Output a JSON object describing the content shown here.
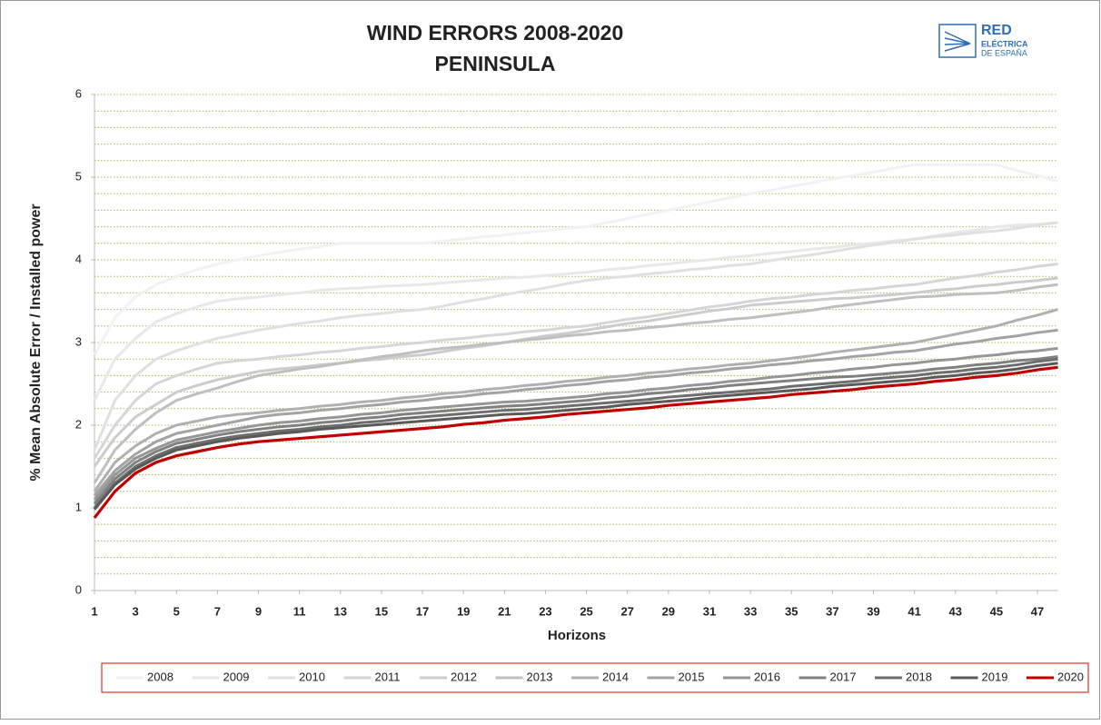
{
  "logo": [
    "RED",
    "ELÉCTRICA",
    "DE ESPAÑA"
  ],
  "chart_data": {
    "type": "line",
    "title": "WIND ERRORS 2008-2020",
    "subtitle": "PENINSULA",
    "x_label": "Horizons",
    "y_label": "% Mean Absolute Error / Installed power",
    "x": [
      1,
      2,
      3,
      4,
      5,
      6,
      7,
      8,
      9,
      10,
      11,
      12,
      13,
      14,
      15,
      16,
      17,
      18,
      19,
      20,
      21,
      22,
      23,
      24,
      25,
      26,
      27,
      28,
      29,
      30,
      31,
      32,
      33,
      34,
      35,
      36,
      37,
      38,
      39,
      40,
      41,
      42,
      43,
      44,
      45,
      46,
      47,
      48
    ],
    "xlim": [
      1,
      48
    ],
    "xticks": [
      1,
      3,
      5,
      7,
      9,
      11,
      13,
      15,
      17,
      19,
      21,
      23,
      25,
      27,
      29,
      31,
      33,
      35,
      37,
      39,
      41,
      43,
      45,
      47
    ],
    "ylim": [
      0,
      6
    ],
    "yticks": [
      0,
      1,
      2,
      3,
      4,
      5,
      6
    ],
    "ygrid": [
      0.2,
      0.4,
      0.6,
      0.8,
      1,
      1.2,
      1.4,
      1.6,
      1.8,
      2,
      2.2,
      2.4,
      2.6,
      2.8,
      3,
      3.2,
      3.4,
      3.6,
      3.8,
      4,
      4.2,
      4.4,
      4.6,
      4.8,
      5,
      5.2,
      5.4,
      5.6,
      5.8,
      6
    ],
    "grid_color": "#9bbb59",
    "legend": "bottom",
    "series": [
      {
        "name": "2008",
        "color": "#f2f2f2",
        "values": [
          2.85,
          3.3,
          3.55,
          3.7,
          3.8,
          3.88,
          3.95,
          4.0,
          4.05,
          4.09,
          4.13,
          4.16,
          4.2,
          4.2,
          4.2,
          4.2,
          4.2,
          4.23,
          4.25,
          4.28,
          4.3,
          4.33,
          4.35,
          4.38,
          4.4,
          4.45,
          4.5,
          4.55,
          4.6,
          4.65,
          4.7,
          4.75,
          4.8,
          4.84,
          4.89,
          4.93,
          4.98,
          5.02,
          5.06,
          5.11,
          5.15,
          5.15,
          5.15,
          5.15,
          5.15,
          5.08,
          5.02,
          4.95
        ]
      },
      {
        "name": "2009",
        "color": "#e8e8e8",
        "values": [
          2.3,
          2.8,
          3.05,
          3.25,
          3.35,
          3.43,
          3.5,
          3.53,
          3.55,
          3.58,
          3.6,
          3.63,
          3.65,
          3.66,
          3.68,
          3.69,
          3.7,
          3.72,
          3.74,
          3.76,
          3.78,
          3.79,
          3.81,
          3.83,
          3.85,
          3.88,
          3.9,
          3.93,
          3.95,
          3.98,
          4.0,
          4.03,
          4.05,
          4.08,
          4.1,
          4.13,
          4.15,
          4.18,
          4.2,
          4.23,
          4.25,
          4.29,
          4.33,
          4.36,
          4.4,
          4.42,
          4.43,
          4.45
        ]
      },
      {
        "name": "2010",
        "color": "#e0e0e0",
        "values": [
          1.7,
          2.3,
          2.6,
          2.8,
          2.9,
          2.98,
          3.05,
          3.1,
          3.15,
          3.19,
          3.23,
          3.26,
          3.3,
          3.33,
          3.35,
          3.38,
          3.4,
          3.44,
          3.49,
          3.53,
          3.58,
          3.62,
          3.66,
          3.71,
          3.75,
          3.78,
          3.8,
          3.83,
          3.85,
          3.88,
          3.9,
          3.93,
          3.95,
          3.99,
          4.03,
          4.06,
          4.1,
          4.14,
          4.18,
          4.21,
          4.25,
          4.28,
          4.3,
          4.33,
          4.35,
          4.38,
          4.42,
          4.45
        ]
      },
      {
        "name": "2011",
        "color": "#d6d6d6",
        "values": [
          1.6,
          2.0,
          2.3,
          2.5,
          2.6,
          2.68,
          2.75,
          2.78,
          2.8,
          2.83,
          2.85,
          2.88,
          2.9,
          2.93,
          2.95,
          2.98,
          3.0,
          3.03,
          3.05,
          3.08,
          3.1,
          3.13,
          3.15,
          3.18,
          3.2,
          3.24,
          3.28,
          3.31,
          3.35,
          3.39,
          3.43,
          3.46,
          3.5,
          3.53,
          3.55,
          3.58,
          3.6,
          3.63,
          3.65,
          3.68,
          3.7,
          3.74,
          3.78,
          3.81,
          3.85,
          3.88,
          3.92,
          3.95
        ]
      },
      {
        "name": "2012",
        "color": "#cccccc",
        "values": [
          1.5,
          1.85,
          2.1,
          2.25,
          2.4,
          2.48,
          2.55,
          2.6,
          2.65,
          2.68,
          2.7,
          2.73,
          2.75,
          2.78,
          2.8,
          2.83,
          2.85,
          2.89,
          2.93,
          2.96,
          3.0,
          3.04,
          3.08,
          3.11,
          3.15,
          3.19,
          3.23,
          3.26,
          3.3,
          3.34,
          3.38,
          3.41,
          3.45,
          3.47,
          3.49,
          3.51,
          3.53,
          3.54,
          3.56,
          3.58,
          3.6,
          3.63,
          3.65,
          3.68,
          3.7,
          3.73,
          3.75,
          3.78
        ]
      },
      {
        "name": "2013",
        "color": "#bfbfbf",
        "values": [
          1.3,
          1.7,
          1.95,
          2.15,
          2.3,
          2.38,
          2.45,
          2.53,
          2.6,
          2.64,
          2.68,
          2.71,
          2.75,
          2.79,
          2.83,
          2.86,
          2.9,
          2.93,
          2.95,
          2.98,
          3.0,
          3.03,
          3.05,
          3.08,
          3.1,
          3.13,
          3.15,
          3.18,
          3.2,
          3.23,
          3.25,
          3.28,
          3.3,
          3.33,
          3.36,
          3.39,
          3.43,
          3.46,
          3.49,
          3.52,
          3.55,
          3.56,
          3.58,
          3.59,
          3.6,
          3.63,
          3.67,
          3.7
        ]
      },
      {
        "name": "2014",
        "color": "#b0b0b0",
        "values": [
          1.2,
          1.55,
          1.75,
          1.9,
          2.0,
          2.05,
          2.1,
          2.13,
          2.15,
          2.18,
          2.2,
          2.23,
          2.25,
          2.28,
          2.3,
          2.33,
          2.35,
          2.38,
          2.4,
          2.43,
          2.45,
          2.48,
          2.5,
          2.53,
          2.55,
          2.58,
          2.6,
          2.63,
          2.65,
          2.68,
          2.7,
          2.73,
          2.75,
          2.78,
          2.81,
          2.84,
          2.88,
          2.91,
          2.94,
          2.97,
          3.0,
          3.05,
          3.1,
          3.15,
          3.2,
          3.27,
          3.33,
          3.4
        ]
      },
      {
        "name": "2015",
        "color": "#a3a3a3",
        "values": [
          1.15,
          1.45,
          1.65,
          1.8,
          1.9,
          1.95,
          2.0,
          2.05,
          2.1,
          2.13,
          2.15,
          2.18,
          2.2,
          2.23,
          2.25,
          2.28,
          2.3,
          2.33,
          2.35,
          2.38,
          2.4,
          2.43,
          2.45,
          2.48,
          2.5,
          2.53,
          2.55,
          2.58,
          2.6,
          2.63,
          2.65,
          2.68,
          2.7,
          2.73,
          2.75,
          2.78,
          2.8,
          2.83,
          2.85,
          2.88,
          2.9,
          2.94,
          2.98,
          3.01,
          3.05,
          3.08,
          3.12,
          3.15
        ]
      },
      {
        "name": "2016",
        "color": "#969696",
        "values": [
          1.1,
          1.4,
          1.6,
          1.72,
          1.82,
          1.87,
          1.92,
          1.96,
          2.0,
          2.03,
          2.05,
          2.08,
          2.1,
          2.13,
          2.15,
          2.18,
          2.2,
          2.22,
          2.24,
          2.26,
          2.28,
          2.29,
          2.31,
          2.33,
          2.35,
          2.38,
          2.4,
          2.43,
          2.45,
          2.48,
          2.5,
          2.53,
          2.55,
          2.58,
          2.6,
          2.63,
          2.65,
          2.68,
          2.7,
          2.73,
          2.75,
          2.78,
          2.8,
          2.83,
          2.85,
          2.88,
          2.9,
          2.93
        ]
      },
      {
        "name": "2017",
        "color": "#808080",
        "values": [
          1.05,
          1.35,
          1.55,
          1.68,
          1.78,
          1.83,
          1.88,
          1.92,
          1.95,
          1.98,
          2.0,
          2.03,
          2.05,
          2.08,
          2.1,
          2.13,
          2.15,
          2.17,
          2.19,
          2.21,
          2.23,
          2.24,
          2.26,
          2.28,
          2.3,
          2.33,
          2.35,
          2.38,
          2.4,
          2.43,
          2.45,
          2.48,
          2.5,
          2.52,
          2.54,
          2.56,
          2.58,
          2.59,
          2.61,
          2.63,
          2.65,
          2.68,
          2.7,
          2.73,
          2.75,
          2.78,
          2.8,
          2.83
        ]
      },
      {
        "name": "2018",
        "color": "#6e6e6e",
        "values": [
          1.0,
          1.3,
          1.5,
          1.63,
          1.73,
          1.78,
          1.83,
          1.87,
          1.9,
          1.93,
          1.95,
          1.98,
          2.0,
          2.03,
          2.05,
          2.08,
          2.1,
          2.12,
          2.14,
          2.16,
          2.18,
          2.19,
          2.21,
          2.23,
          2.25,
          2.27,
          2.29,
          2.31,
          2.34,
          2.36,
          2.38,
          2.4,
          2.42,
          2.44,
          2.47,
          2.49,
          2.51,
          2.53,
          2.56,
          2.58,
          2.6,
          2.63,
          2.65,
          2.68,
          2.7,
          2.73,
          2.77,
          2.8
        ]
      },
      {
        "name": "2019",
        "color": "#5a5a5a",
        "values": [
          0.98,
          1.28,
          1.47,
          1.6,
          1.7,
          1.75,
          1.8,
          1.84,
          1.87,
          1.9,
          1.92,
          1.95,
          1.97,
          1.99,
          2.01,
          2.03,
          2.05,
          2.07,
          2.09,
          2.11,
          2.13,
          2.14,
          2.16,
          2.18,
          2.2,
          2.22,
          2.25,
          2.27,
          2.29,
          2.31,
          2.34,
          2.36,
          2.38,
          2.4,
          2.42,
          2.44,
          2.47,
          2.49,
          2.51,
          2.53,
          2.55,
          2.58,
          2.6,
          2.63,
          2.65,
          2.68,
          2.72,
          2.75
        ]
      },
      {
        "name": "2020",
        "color": "#c00000",
        "values": [
          0.88,
          1.2,
          1.42,
          1.55,
          1.63,
          1.68,
          1.73,
          1.77,
          1.8,
          1.82,
          1.84,
          1.86,
          1.88,
          1.9,
          1.92,
          1.94,
          1.96,
          1.98,
          2.01,
          2.03,
          2.06,
          2.08,
          2.1,
          2.13,
          2.15,
          2.17,
          2.19,
          2.21,
          2.24,
          2.26,
          2.28,
          2.3,
          2.32,
          2.34,
          2.37,
          2.39,
          2.41,
          2.43,
          2.46,
          2.48,
          2.5,
          2.53,
          2.55,
          2.58,
          2.6,
          2.63,
          2.67,
          2.7
        ]
      }
    ]
  }
}
